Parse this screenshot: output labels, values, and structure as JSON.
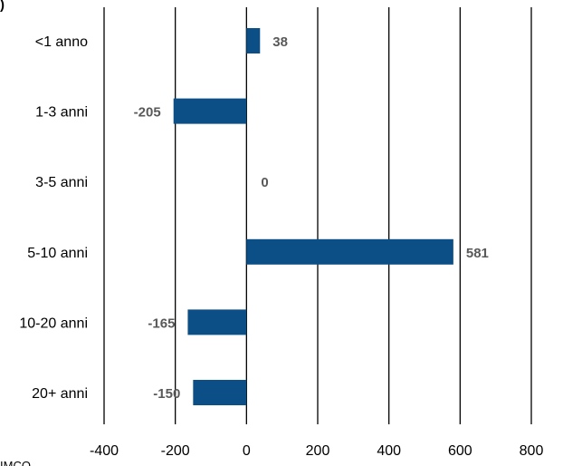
{
  "corner_fragment": ")",
  "footer_fragment": "IMCO",
  "colors": {
    "bar": "#0b4f86",
    "gridline": "#000000",
    "value_label": "#595959",
    "text": "#000000"
  },
  "chart_data": {
    "type": "bar",
    "orientation": "horizontal",
    "title": "",
    "xlabel": "",
    "ylabel": "",
    "categories": [
      "<1 anno",
      "1-3 anni",
      "3-5 anni",
      "5-10 anni",
      "10-20 anni",
      "20+ anni"
    ],
    "values": [
      38,
      -205,
      0,
      581,
      -165,
      -150
    ],
    "value_labels": [
      "38",
      "-205",
      "0",
      "581",
      "-165",
      "-150"
    ],
    "xlim": [
      -400,
      800
    ],
    "xticks": [
      -400,
      -200,
      0,
      200,
      400,
      600,
      800
    ],
    "xtick_labels": [
      "-400",
      "-200",
      "0",
      "200",
      "400",
      "600",
      "800"
    ],
    "grid": "vertical",
    "legend": "none"
  }
}
